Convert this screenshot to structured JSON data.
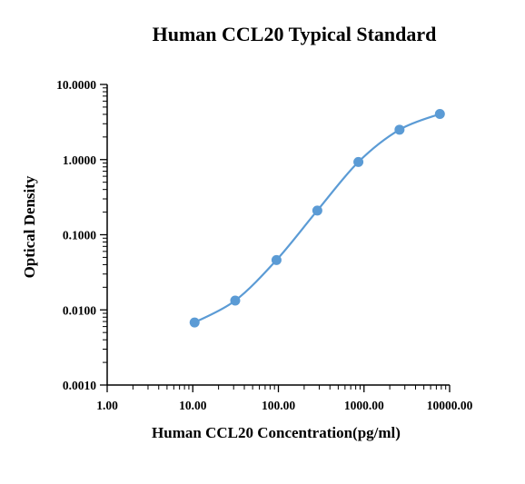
{
  "chart_data": {
    "type": "scatter",
    "title": "Human CCL20 Typical Standard",
    "xlabel": "Human CCL20 Concentration(pg/ml)",
    "ylabel": "Optical Density",
    "x_scale": "log",
    "y_scale": "log",
    "xlim": [
      1,
      10000
    ],
    "ylim": [
      0.001,
      10
    ],
    "x_ticks": [
      1,
      10,
      100,
      1000,
      10000
    ],
    "x_tick_labels": [
      "1.00",
      "10.00",
      "100.00",
      "1000.00",
      "10000.00"
    ],
    "y_ticks": [
      0.001,
      0.01,
      0.1,
      1,
      10
    ],
    "y_tick_labels": [
      "0.0010",
      "0.0100",
      "0.1000",
      "1.0000",
      "10.0000"
    ],
    "grid": false,
    "legend": "none",
    "colors": {
      "series": "#5b9bd5",
      "axis": "#000000"
    },
    "series": [
      {
        "x": [
          10.5,
          31.3,
          95,
          285,
          860,
          2600,
          7700
        ],
        "y": [
          0.0068,
          0.0133,
          0.046,
          0.21,
          0.93,
          2.5,
          4.05
        ]
      }
    ]
  }
}
